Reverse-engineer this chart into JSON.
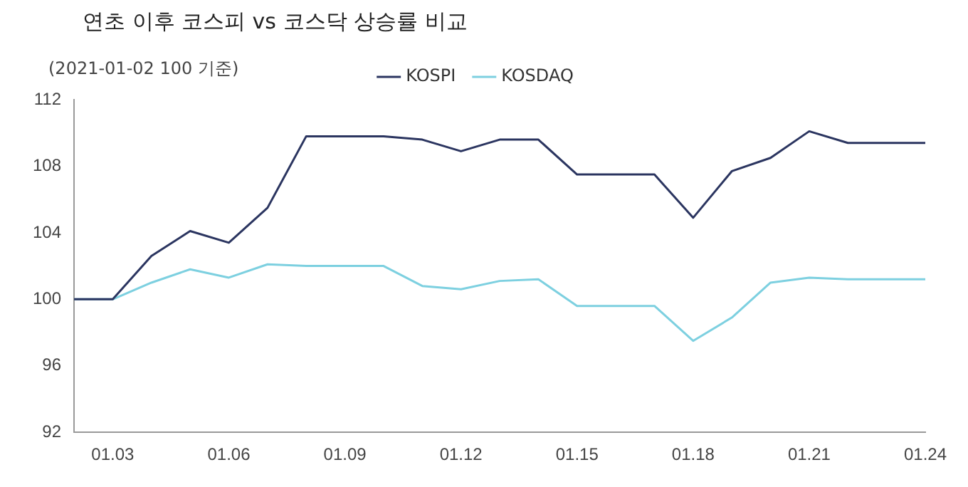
{
  "chart_data": {
    "type": "line",
    "title": "연초 이후 코스피 vs 코스닥 상승률 비교",
    "ylabel": "(2021-01-02 100 기준)",
    "categories": [
      null,
      "01.03",
      null,
      null,
      "01.06",
      null,
      null,
      "01.09",
      null,
      null,
      "01.12",
      null,
      null,
      "01.15",
      null,
      null,
      "01.18",
      null,
      null,
      "01.21",
      null,
      null,
      "01.24"
    ],
    "series": [
      {
        "name": "KOSPI",
        "color": "#2b3560",
        "values": [
          100,
          100,
          102.6,
          104.1,
          103.4,
          105.5,
          109.8,
          109.8,
          109.8,
          109.6,
          108.9,
          109.6,
          109.6,
          107.5,
          107.5,
          107.5,
          104.9,
          107.7,
          108.5,
          110.1,
          109.4,
          109.4,
          109.4
        ]
      },
      {
        "name": "KOSDAQ",
        "color": "#7dd0e0",
        "values": [
          100,
          100,
          101,
          101.8,
          101.3,
          102.1,
          102,
          102,
          102,
          100.8,
          100.6,
          101.1,
          101.2,
          99.6,
          99.6,
          99.6,
          97.5,
          98.9,
          101,
          101.3,
          101.2,
          101.2,
          101.2
        ]
      }
    ],
    "ylim": [
      92,
      112
    ],
    "yticks": [
      92,
      96,
      100,
      104,
      108,
      112
    ],
    "grid": false,
    "legend": "top",
    "marker": "none",
    "line_style": "solid"
  }
}
